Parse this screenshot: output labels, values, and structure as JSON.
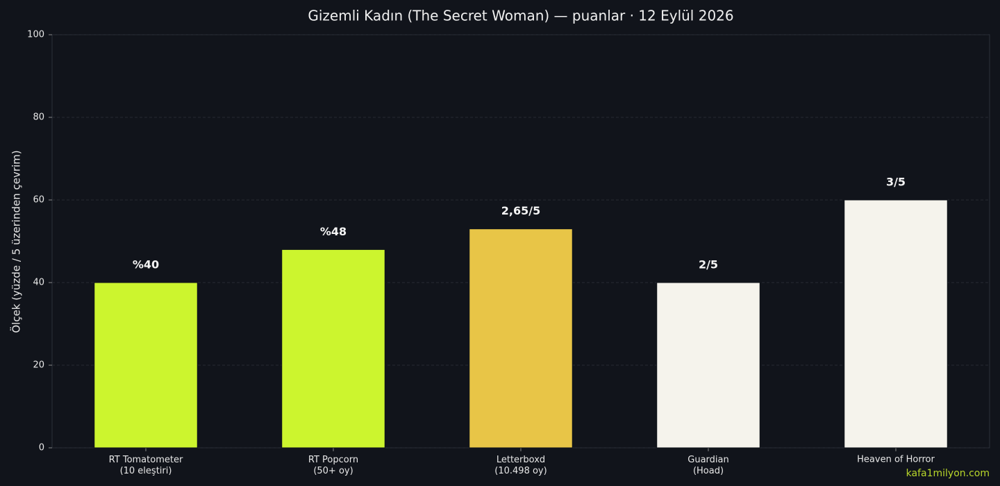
{
  "chart_data": {
    "type": "bar",
    "title": "Gizemli Kadın (The Secret Woman) — puanlar · 12 Eylül 2026",
    "y_label": "Ölçek (yüzde / 5 üzerinden çevrim)",
    "categories": [
      "RT Tomatometer\n(10 eleştiri)",
      "RT Popcorn\n(50+ oy)",
      "Letterboxd\n(10.498 oy)",
      "Guardian\n(Hoad)",
      "Heaven of Horror"
    ],
    "values": [
      40,
      48,
      53,
      40,
      60
    ],
    "value_labels": [
      "%40",
      "%48",
      "2,65/5",
      "2/5",
      "3/5"
    ],
    "colors": [
      "#ccf52e",
      "#ccf52e",
      "#e8c547",
      "#f5f3ec",
      "#f5f3ec"
    ],
    "ylim": [
      0,
      100
    ],
    "yticks": [
      0,
      20,
      40,
      60,
      80,
      100
    ],
    "grid": true,
    "watermark": "kafa1milyon.com"
  }
}
